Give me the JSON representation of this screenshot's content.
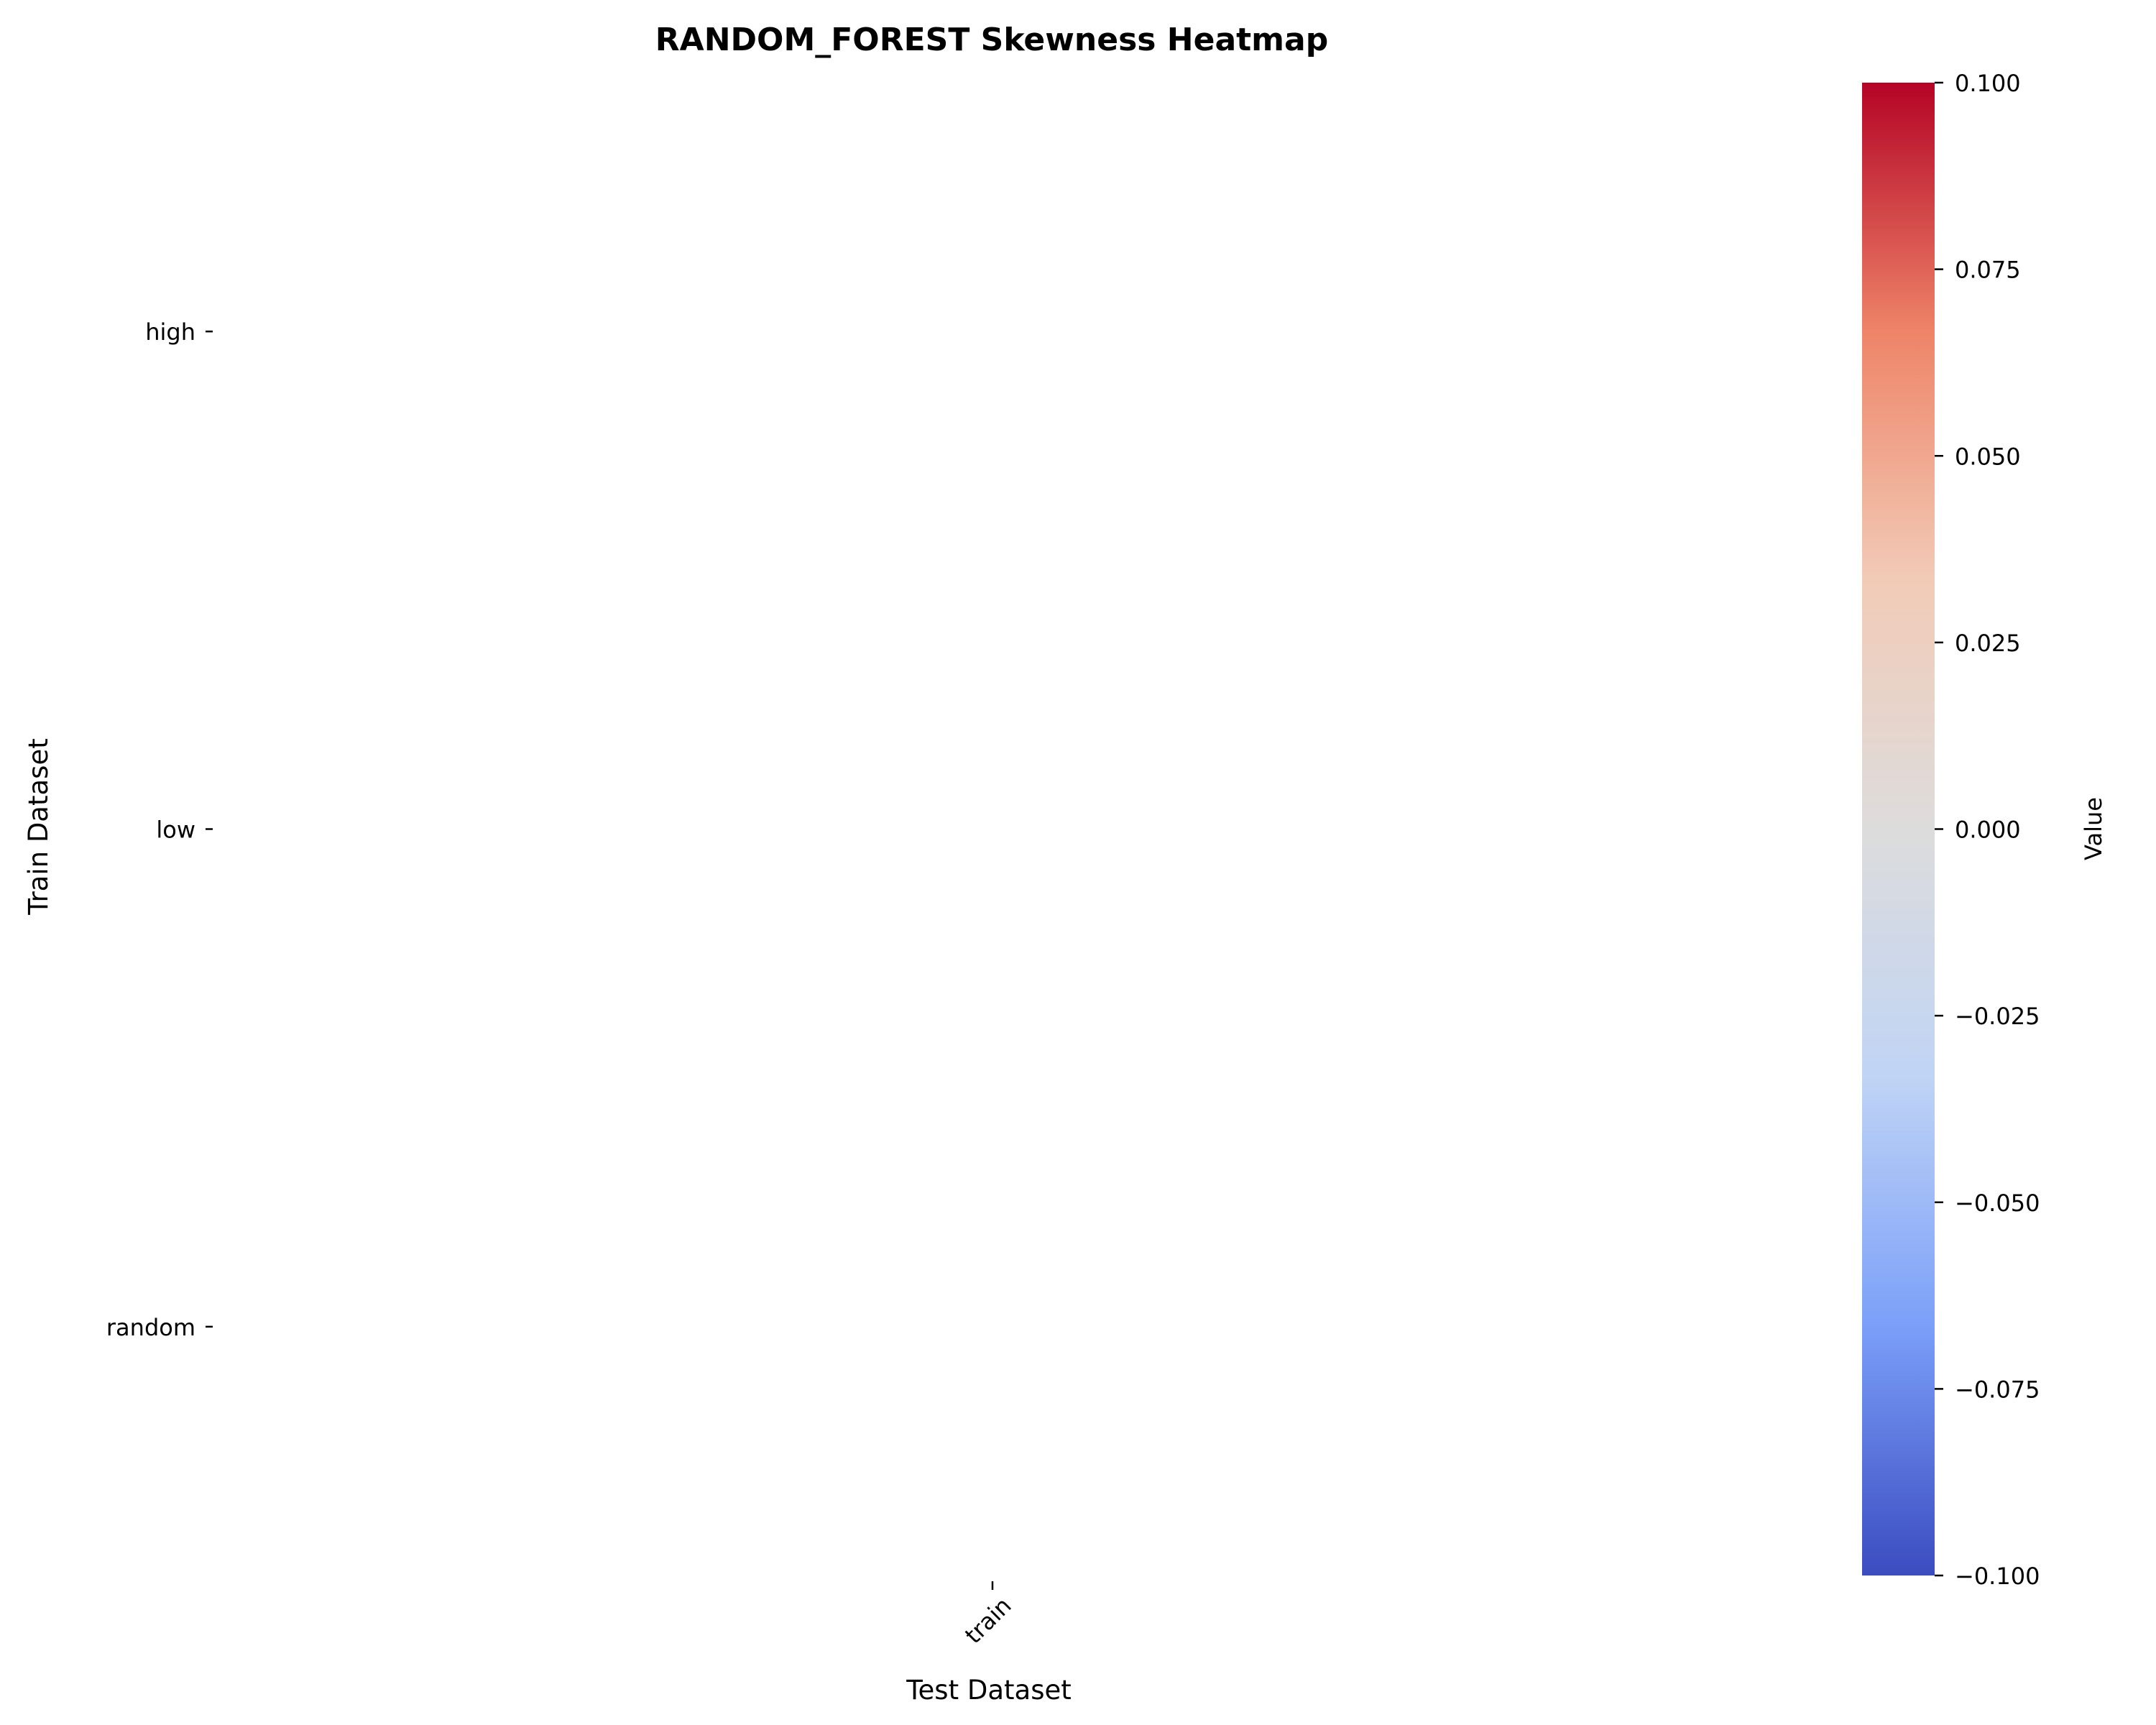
{
  "chart_data": {
    "type": "heatmap",
    "title": "RANDOM_FOREST Skewness Heatmap",
    "xlabel": "Test Dataset",
    "ylabel": "Train Dataset",
    "x_categories": [
      "train"
    ],
    "y_categories": [
      "high",
      "low",
      "random"
    ],
    "values": [
      [
        null
      ],
      [
        null
      ],
      [
        null
      ]
    ],
    "colorbar": {
      "label": "Value",
      "colormap": "coolwarm",
      "vmin": -0.1,
      "vmax": 0.1,
      "ticks": [
        "0.100",
        "0.075",
        "0.050",
        "0.025",
        "0.000",
        "−0.025",
        "−0.050",
        "−0.075",
        "−0.100"
      ],
      "colors": [
        "#3b4cc0",
        "#7b9ff9",
        "#c0d4f5",
        "#dddcdc",
        "#f2cbb7",
        "#ee8468",
        "#b40426"
      ]
    },
    "grid": false
  }
}
